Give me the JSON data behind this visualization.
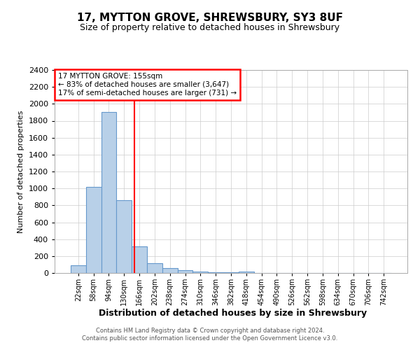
{
  "title": "17, MYTTON GROVE, SHREWSBURY, SY3 8UF",
  "subtitle": "Size of property relative to detached houses in Shrewsbury",
  "xlabel": "Distribution of detached houses by size in Shrewsbury",
  "ylabel": "Number of detached properties",
  "footer_line1": "Contains HM Land Registry data © Crown copyright and database right 2024.",
  "footer_line2": "Contains public sector information licensed under the Open Government Licence v3.0.",
  "bin_labels": [
    "22sqm",
    "58sqm",
    "94sqm",
    "130sqm",
    "166sqm",
    "202sqm",
    "238sqm",
    "274sqm",
    "310sqm",
    "346sqm",
    "382sqm",
    "418sqm",
    "454sqm",
    "490sqm",
    "526sqm",
    "562sqm",
    "598sqm",
    "634sqm",
    "670sqm",
    "706sqm",
    "742sqm"
  ],
  "bar_heights": [
    90,
    1020,
    1900,
    860,
    315,
    120,
    55,
    35,
    20,
    10,
    10,
    20,
    0,
    0,
    0,
    0,
    0,
    0,
    0,
    0,
    0
  ],
  "bar_color": "#b8d0e8",
  "bar_edgecolor": "#6699cc",
  "annotation_text": "17 MYTTON GROVE: 155sqm\n← 83% of detached houses are smaller (3,647)\n17% of semi-detached houses are larger (731) →",
  "annotation_box_color": "white",
  "annotation_box_edgecolor": "red",
  "ylim": [
    0,
    2400
  ],
  "yticks": [
    0,
    200,
    400,
    600,
    800,
    1000,
    1200,
    1400,
    1600,
    1800,
    2000,
    2200,
    2400
  ],
  "grid_color": "#cccccc",
  "background_color": "white",
  "title_fontsize": 11,
  "subtitle_fontsize": 9
}
